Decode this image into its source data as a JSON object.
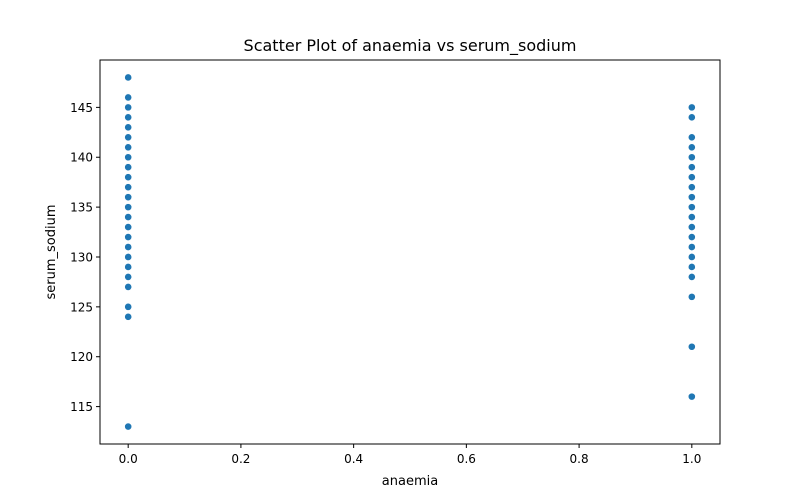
{
  "chart_data": {
    "type": "scatter",
    "title": "Scatter Plot of anaemia vs serum_sodium",
    "xlabel": "anaemia",
    "ylabel": "serum_sodium",
    "xlim": [
      -0.05,
      1.05
    ],
    "ylim": [
      111.25,
      149.75
    ],
    "xticks": [
      0.0,
      0.2,
      0.4,
      0.6,
      0.8,
      1.0
    ],
    "xtick_labels": [
      "0.0",
      "0.2",
      "0.4",
      "0.6",
      "0.8",
      "1.0"
    ],
    "yticks": [
      115,
      120,
      125,
      130,
      135,
      140,
      145
    ],
    "ytick_labels": [
      "115",
      "120",
      "125",
      "130",
      "135",
      "140",
      "145"
    ],
    "grid": false,
    "marker_color": "#1f77b4",
    "series": [
      {
        "points": [
          {
            "x": 0,
            "y": 148
          },
          {
            "x": 0,
            "y": 146
          },
          {
            "x": 0,
            "y": 145
          },
          {
            "x": 0,
            "y": 144
          },
          {
            "x": 0,
            "y": 143
          },
          {
            "x": 0,
            "y": 142
          },
          {
            "x": 0,
            "y": 141
          },
          {
            "x": 0,
            "y": 140
          },
          {
            "x": 0,
            "y": 139
          },
          {
            "x": 0,
            "y": 138
          },
          {
            "x": 0,
            "y": 137
          },
          {
            "x": 0,
            "y": 136
          },
          {
            "x": 0,
            "y": 135
          },
          {
            "x": 0,
            "y": 134
          },
          {
            "x": 0,
            "y": 133
          },
          {
            "x": 0,
            "y": 132
          },
          {
            "x": 0,
            "y": 131
          },
          {
            "x": 0,
            "y": 130
          },
          {
            "x": 0,
            "y": 129
          },
          {
            "x": 0,
            "y": 128
          },
          {
            "x": 0,
            "y": 127
          },
          {
            "x": 0,
            "y": 125
          },
          {
            "x": 0,
            "y": 124
          },
          {
            "x": 0,
            "y": 113
          },
          {
            "x": 1,
            "y": 145
          },
          {
            "x": 1,
            "y": 144
          },
          {
            "x": 1,
            "y": 142
          },
          {
            "x": 1,
            "y": 141
          },
          {
            "x": 1,
            "y": 140
          },
          {
            "x": 1,
            "y": 139
          },
          {
            "x": 1,
            "y": 138
          },
          {
            "x": 1,
            "y": 137
          },
          {
            "x": 1,
            "y": 136
          },
          {
            "x": 1,
            "y": 135
          },
          {
            "x": 1,
            "y": 134
          },
          {
            "x": 1,
            "y": 133
          },
          {
            "x": 1,
            "y": 132
          },
          {
            "x": 1,
            "y": 131
          },
          {
            "x": 1,
            "y": 130
          },
          {
            "x": 1,
            "y": 129
          },
          {
            "x": 1,
            "y": 128
          },
          {
            "x": 1,
            "y": 126
          },
          {
            "x": 1,
            "y": 121
          },
          {
            "x": 1,
            "y": 116
          }
        ]
      }
    ]
  }
}
